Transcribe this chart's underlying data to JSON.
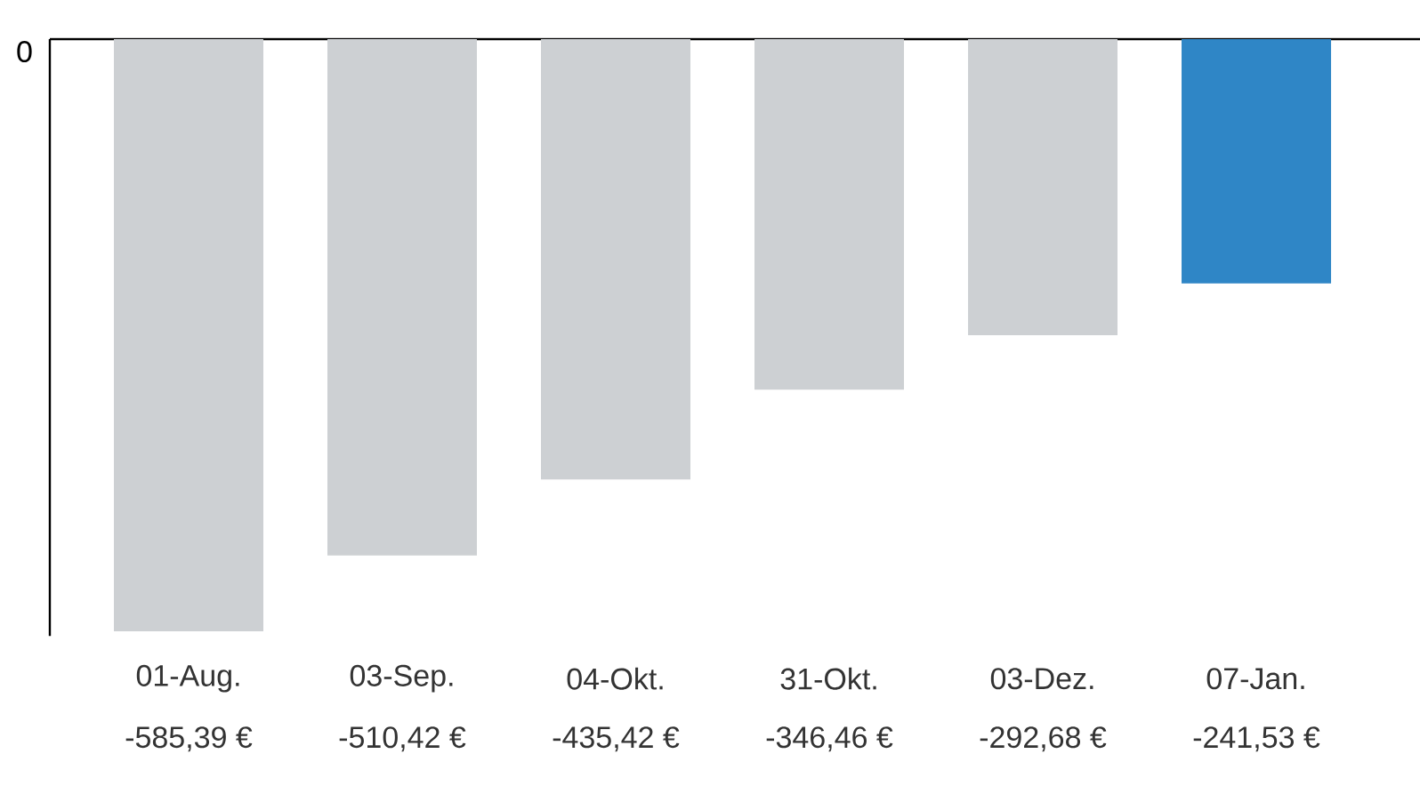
{
  "chart_data": {
    "type": "bar",
    "categories": [
      "01-Aug.",
      "03-Sep.",
      "04-Okt.",
      "31-Okt.",
      "03-Dez.",
      "07-Jan."
    ],
    "values": [
      -585.39,
      -510.42,
      -435.42,
      -346.46,
      -292.68,
      -241.53
    ],
    "value_labels": [
      "-585,39 €",
      "-510,42 €",
      "-435,42 €",
      "-346,46 €",
      "-292,68 €",
      "-241,53 €"
    ],
    "colors": [
      "#cdd0d3",
      "#cdd0d3",
      "#cdd0d3",
      "#cdd0d3",
      "#cdd0d3",
      "#2f86c6"
    ],
    "ylim": [
      -590,
      0
    ],
    "annotations": [
      "0"
    ]
  }
}
